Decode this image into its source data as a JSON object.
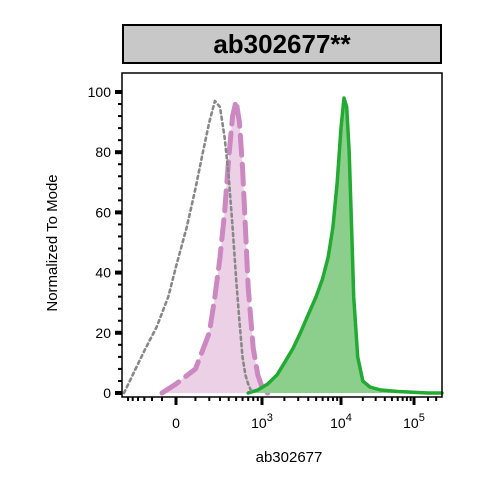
{
  "chart_data": {
    "type": "area",
    "title": "ab302677**",
    "xlabel": "ab302677",
    "ylabel": "Normalized To Mode",
    "x_scale": "biexponential",
    "ylim": [
      0,
      100
    ],
    "y_ticks": [
      "0",
      "20",
      "40",
      "60",
      "80",
      "100"
    ],
    "x_ticks": [
      {
        "base": "0",
        "exp": ""
      },
      {
        "base": "10",
        "exp": "3"
      },
      {
        "base": "10",
        "exp": "4"
      },
      {
        "base": "10",
        "exp": "5"
      }
    ],
    "colors": {
      "isotype": "#888888",
      "unstained": "#cc88c0",
      "unstained_fill": "#ecd0e6",
      "stained": "#22aa33",
      "stained_fill": "#8ccf8c"
    },
    "series": [
      {
        "style": "gray dotted outline",
        "x": [
          -700,
          -500,
          -300,
          -150,
          -50,
          0,
          50,
          100,
          150,
          200,
          250,
          300,
          350,
          400,
          450,
          500,
          550,
          600,
          650,
          700,
          750,
          800
        ],
        "y": [
          0,
          6,
          14,
          22,
          32,
          42,
          55,
          68,
          80,
          90,
          97,
          95,
          85,
          72,
          55,
          38,
          24,
          12,
          6,
          3,
          1,
          0
        ]
      },
      {
        "style": "pink dashed outline, light pink fill",
        "x": [
          -100,
          0,
          100,
          200,
          250,
          300,
          350,
          400,
          450,
          500,
          550,
          600,
          650,
          700,
          800,
          900,
          1000,
          1200
        ],
        "y": [
          0,
          3,
          8,
          20,
          32,
          45,
          60,
          78,
          92,
          97,
          90,
          75,
          55,
          35,
          15,
          6,
          2,
          0
        ]
      },
      {
        "style": "green solid outline, green fill",
        "x": [
          700,
          900,
          1200,
          1600,
          2000,
          2600,
          3200,
          4000,
          5000,
          6000,
          7000,
          8000,
          9000,
          10000,
          11000,
          12000,
          13000,
          14000,
          15000,
          17000,
          20000,
          25000,
          35000,
          60000,
          200000,
          400000
        ],
        "y": [
          0,
          1,
          3,
          6,
          10,
          15,
          20,
          26,
          32,
          38,
          45,
          55,
          70,
          88,
          98,
          95,
          80,
          55,
          32,
          12,
          4,
          2,
          1,
          0.5,
          0,
          0
        ]
      }
    ]
  }
}
